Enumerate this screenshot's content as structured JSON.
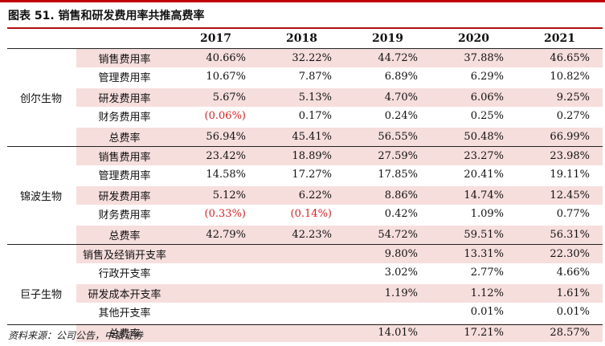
{
  "title": "图表 51.  销售和研发费用率共推高费率",
  "years": [
    "2017",
    "2018",
    "2019",
    "2020",
    "2021"
  ],
  "groups": [
    {
      "company": "创尔生物",
      "rows": [
        {
          "label": "销售费用率",
          "values": [
            "40.66%",
            "32.22%",
            "44.72%",
            "37.88%",
            "46.65%"
          ]
        },
        {
          "label": "管理费用率",
          "values": [
            "10.67%",
            "7.87%",
            "6.89%",
            "6.29%",
            "10.82%"
          ]
        },
        {
          "label": "研发费用率",
          "values": [
            "5.67%",
            "5.13%",
            "4.70%",
            "6.06%",
            "9.25%"
          ]
        },
        {
          "label": "财务费用率",
          "values": [
            "(0.06%)",
            "0.17%",
            "0.24%",
            "0.25%",
            "0.27%"
          ]
        },
        {
          "label": "总费率",
          "values": [
            "56.94%",
            "45.41%",
            "56.55%",
            "50.48%",
            "66.99%"
          ]
        }
      ]
    },
    {
      "company": "锦波生物",
      "rows": [
        {
          "label": "销售费用率",
          "values": [
            "23.42%",
            "18.89%",
            "27.59%",
            "23.27%",
            "23.98%"
          ]
        },
        {
          "label": "管理费用率",
          "values": [
            "14.58%",
            "17.27%",
            "17.85%",
            "20.41%",
            "19.11%"
          ]
        },
        {
          "label": "研发费用率",
          "values": [
            "5.12%",
            "6.22%",
            "8.86%",
            "14.74%",
            "12.45%"
          ]
        },
        {
          "label": "财务费用率",
          "values": [
            "(0.33%)",
            "(0.14%)",
            "0.42%",
            "1.09%",
            "0.77%"
          ]
        },
        {
          "label": "总费率",
          "values": [
            "42.79%",
            "42.23%",
            "54.72%",
            "59.51%",
            "56.31%"
          ]
        }
      ]
    },
    {
      "company": "巨子生物",
      "rows": [
        {
          "label": "销售及经销开支率",
          "values": [
            "",
            "",
            "9.80%",
            "13.31%",
            "22.30%"
          ]
        },
        {
          "label": "行政开支率",
          "values": [
            "",
            "",
            "3.02%",
            "2.77%",
            "4.66%"
          ]
        },
        {
          "label": "研发成本开支率",
          "values": [
            "",
            "",
            "1.19%",
            "1.12%",
            "1.61%"
          ]
        },
        {
          "label": "其他开支率",
          "values": [
            "",
            "",
            "",
            "0.01%",
            "0.01%"
          ]
        },
        {
          "label": "总费率",
          "values": [
            "",
            "",
            "14.01%",
            "17.21%",
            "28.57%"
          ]
        }
      ]
    }
  ],
  "source": "资料来源：公司公告，中银证券",
  "colors": {
    "accent": "#c00000",
    "shade": "#f6dedd",
    "negative": "#e02020"
  }
}
